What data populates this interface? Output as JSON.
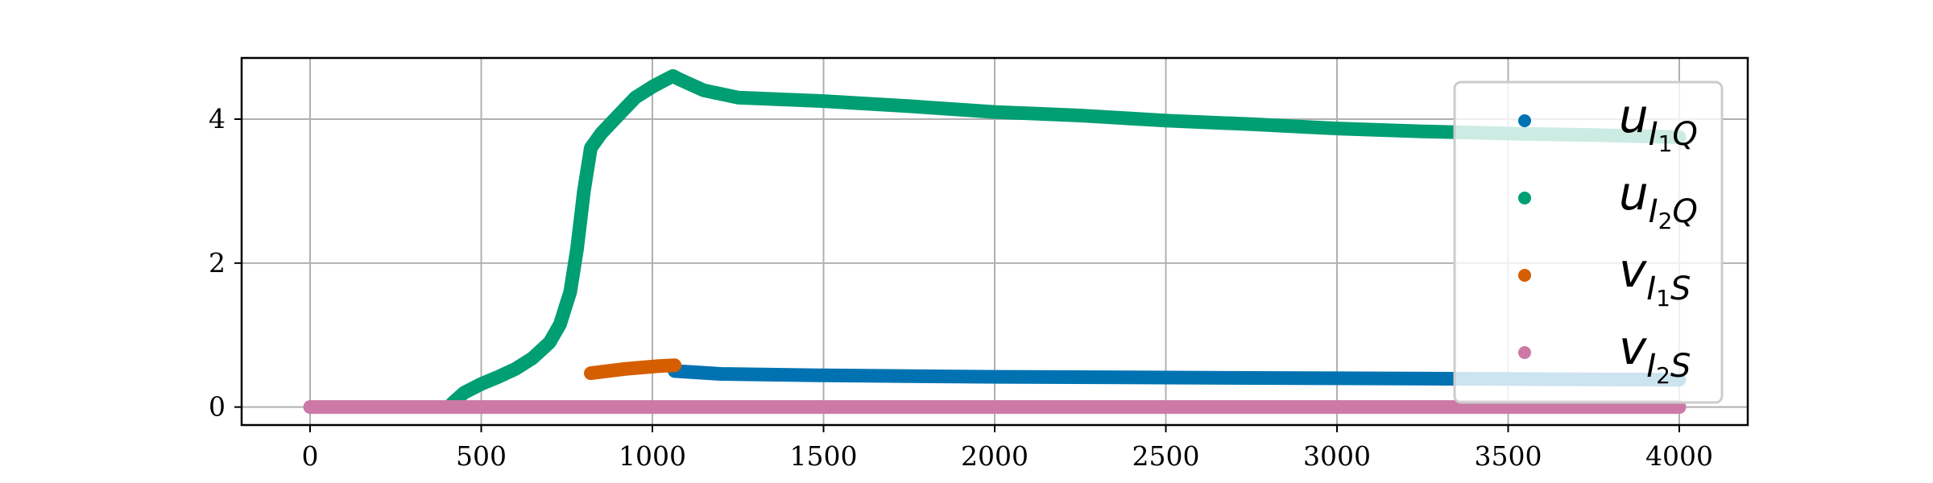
{
  "chart_data": {
    "type": "scatter",
    "xlim": [
      -200,
      4200
    ],
    "ylim": [
      -0.25,
      4.85
    ],
    "x_ticks": [
      0,
      500,
      1000,
      1500,
      2000,
      2500,
      3000,
      3500,
      4000
    ],
    "y_ticks": [
      0,
      2,
      4
    ],
    "x_tick_labels": [
      "0",
      "500",
      "1000",
      "1500",
      "2000",
      "2500",
      "3000",
      "3500",
      "4000"
    ],
    "y_tick_labels": [
      "0",
      "2",
      "4"
    ],
    "grid": true,
    "legend_position": "right",
    "series": [
      {
        "name": "u_{I_1Q}",
        "legend": {
          "main": "u",
          "sub": "I",
          "subsub": "1",
          "subtail": "Q"
        },
        "color": "#0072B2",
        "points": [
          [
            1065,
            0.5
          ],
          [
            1200,
            0.46
          ],
          [
            1500,
            0.44
          ],
          [
            2000,
            0.42
          ],
          [
            2500,
            0.41
          ],
          [
            3000,
            0.4
          ],
          [
            3500,
            0.39
          ],
          [
            4000,
            0.38
          ]
        ]
      },
      {
        "name": "u_{I_2Q}",
        "legend": {
          "main": "u",
          "sub": "I",
          "subsub": "2",
          "subtail": "Q"
        },
        "color": "#009E73",
        "points": [
          [
            415,
            0.05
          ],
          [
            450,
            0.2
          ],
          [
            500,
            0.32
          ],
          [
            550,
            0.42
          ],
          [
            600,
            0.53
          ],
          [
            650,
            0.68
          ],
          [
            700,
            0.9
          ],
          [
            730,
            1.15
          ],
          [
            760,
            1.6
          ],
          [
            780,
            2.2
          ],
          [
            800,
            3.0
          ],
          [
            820,
            3.6
          ],
          [
            850,
            3.8
          ],
          [
            900,
            4.05
          ],
          [
            950,
            4.3
          ],
          [
            1000,
            4.45
          ],
          [
            1040,
            4.55
          ],
          [
            1060,
            4.6
          ],
          [
            1080,
            4.55
          ],
          [
            1150,
            4.4
          ],
          [
            1250,
            4.3
          ],
          [
            1500,
            4.25
          ],
          [
            1750,
            4.18
          ],
          [
            2000,
            4.1
          ],
          [
            2250,
            4.05
          ],
          [
            2500,
            3.98
          ],
          [
            2750,
            3.93
          ],
          [
            3000,
            3.87
          ],
          [
            3250,
            3.83
          ],
          [
            3500,
            3.8
          ],
          [
            3750,
            3.78
          ],
          [
            4000,
            3.75
          ]
        ]
      },
      {
        "name": "v_{I_1S}",
        "legend": {
          "main": "v",
          "sub": "I",
          "subsub": "1",
          "subtail": "S"
        },
        "color": "#D55E00",
        "points": [
          [
            820,
            0.47
          ],
          [
            870,
            0.5
          ],
          [
            920,
            0.53
          ],
          [
            970,
            0.55
          ],
          [
            1020,
            0.57
          ],
          [
            1065,
            0.58
          ]
        ]
      },
      {
        "name": "v_{I_2S}",
        "legend": {
          "main": "v",
          "sub": "I",
          "subsub": "2",
          "subtail": "S"
        },
        "color": "#CC79A7",
        "points": [
          [
            0,
            0.0
          ],
          [
            1000,
            0.0
          ],
          [
            2000,
            0.0
          ],
          [
            3000,
            0.0
          ],
          [
            4000,
            0.0
          ]
        ]
      }
    ]
  }
}
